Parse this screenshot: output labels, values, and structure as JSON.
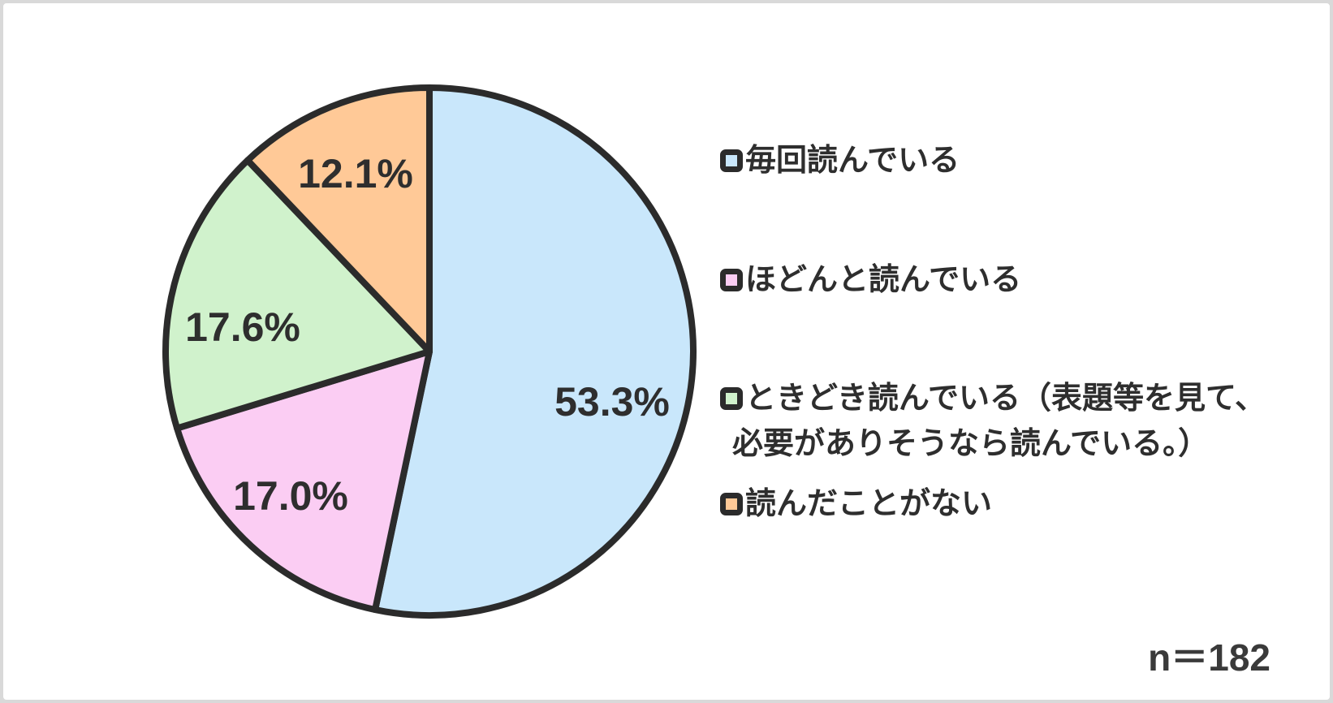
{
  "chart_data": {
    "type": "pie",
    "title": "",
    "legend_position": "right",
    "start_angle_deg": 0,
    "direction": "clockwise",
    "sample_size_label": "n＝182",
    "slices": [
      {
        "label": "毎回読んでいる",
        "value": 53.3,
        "pct_label": "53.3%",
        "color": "#c9e7fb"
      },
      {
        "label": "ほどんと読んでいる",
        "value": 17.0,
        "pct_label": "17.0%",
        "color": "#fbcdf3"
      },
      {
        "label": "ときどき読んでいる（表題等を見て、必要がありそうなら読んでいる。）",
        "value": 17.6,
        "pct_label": "17.6%",
        "color": "#d0f2cc"
      },
      {
        "label": "読んだことがない",
        "value": 12.1,
        "pct_label": "12.1%",
        "color": "#ffc997"
      }
    ]
  },
  "legend": {
    "items": [
      {
        "label": "毎回読んでいる",
        "color": "#c9e7fb"
      },
      {
        "label": "ほどんと読んでいる",
        "color": "#fbcdf3"
      },
      {
        "label": "ときどき読んでいる（表題等を見て、",
        "label2": "必要がありそうなら読んでいる。）",
        "color": "#d0f2cc"
      },
      {
        "label": "読んだことがない",
        "color": "#ffc997"
      }
    ]
  },
  "footer": {
    "sample_size": "n＝182"
  }
}
